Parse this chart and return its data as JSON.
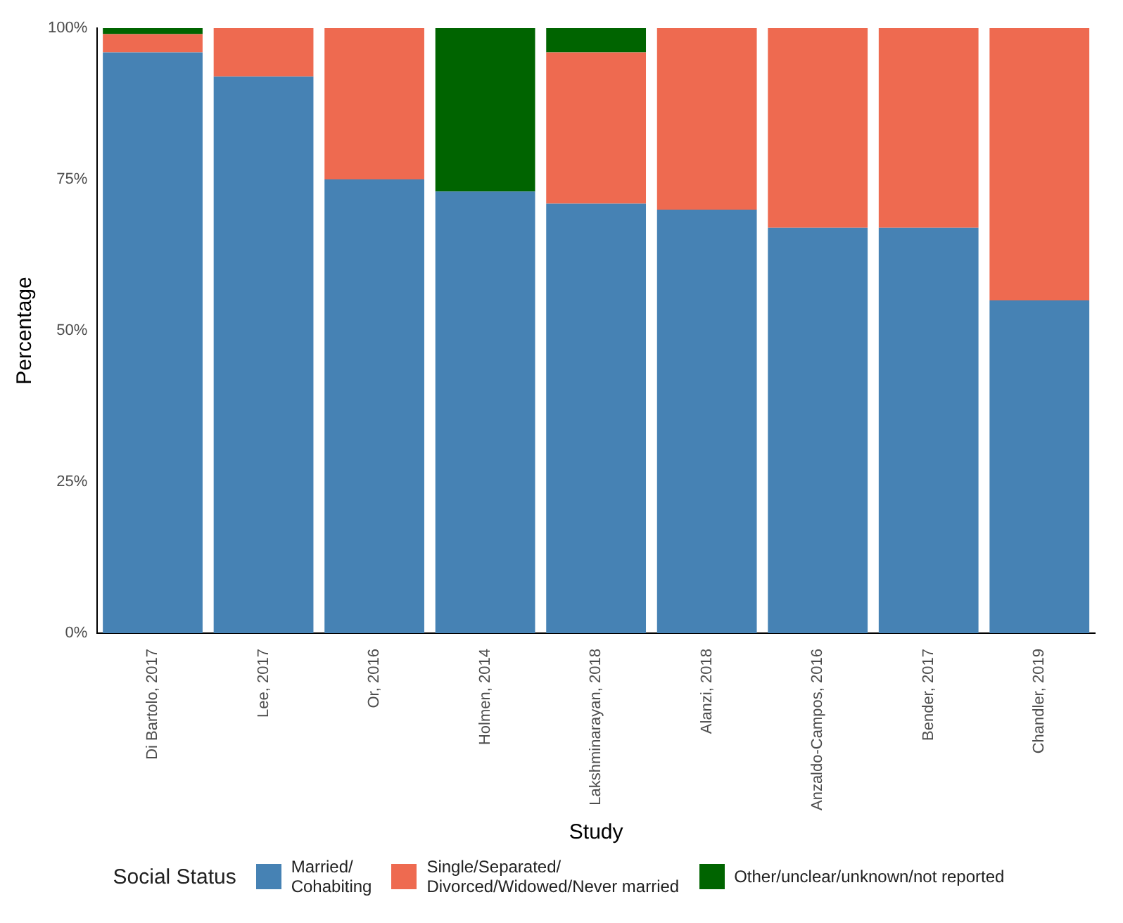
{
  "chart_data": {
    "type": "bar",
    "stacked": true,
    "xlabel": "Study",
    "ylabel": "Percentage",
    "legend_title": "Social Status",
    "legend": "bottom",
    "grid": false,
    "categories": [
      "Di Bartolo, 2017",
      "Lee, 2017",
      "Or, 2016",
      "Holmen, 2014",
      "Lakshminarayan, 2018",
      "Alanzi, 2018",
      "Anzaldo-Campos, 2016",
      "Bender, 2017",
      "Chandler, 2019"
    ],
    "ylim": [
      0,
      100
    ],
    "yticks": [
      {
        "value": 0,
        "label": "0%"
      },
      {
        "value": 25,
        "label": "25%"
      },
      {
        "value": 50,
        "label": "50%"
      },
      {
        "value": 75,
        "label": "75%"
      },
      {
        "value": 100,
        "label": "100%"
      }
    ],
    "series": [
      {
        "name": "Married/\nCohabiting",
        "color": "#4682b4",
        "values": [
          96,
          92,
          75,
          73,
          71,
          70,
          67,
          67,
          55
        ]
      },
      {
        "name": "Single/Separated/\nDivorced/Widowed/Never married",
        "color": "#ee6a50",
        "values": [
          3,
          8,
          25,
          0,
          25,
          30,
          33,
          33,
          45
        ]
      },
      {
        "name": "Other/unclear/unknown/not reported",
        "color": "#006400",
        "values": [
          1,
          0,
          0,
          27,
          4,
          0,
          0,
          0,
          0
        ]
      }
    ]
  }
}
